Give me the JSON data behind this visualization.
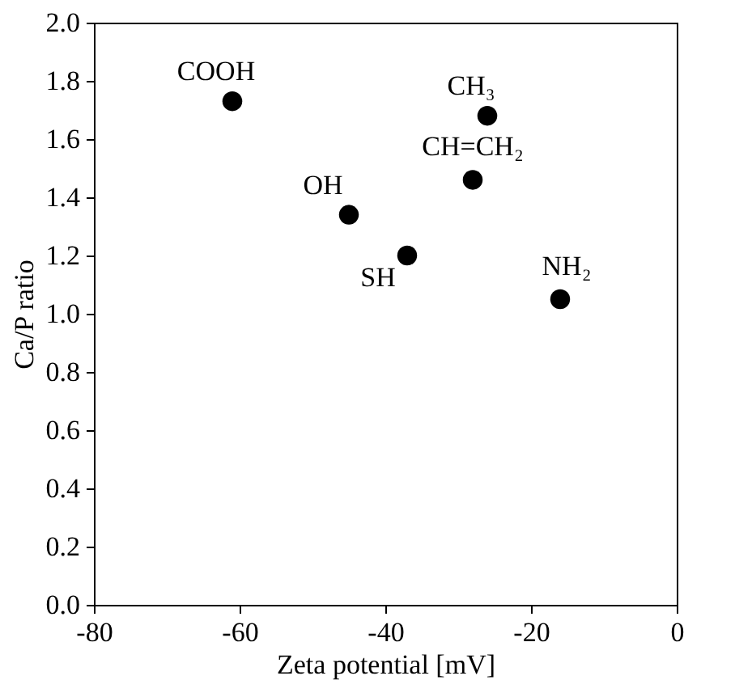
{
  "chart_data": {
    "type": "scatter",
    "xlabel": "Zeta potential [mV]",
    "ylabel": "Ca/P ratio",
    "x": [
      -61,
      -45,
      -37,
      -26,
      -28,
      -16
    ],
    "series": [
      {
        "color": "#000000",
        "values": [
          1.73,
          1.34,
          1.2,
          1.68,
          1.46,
          1.05
        ]
      }
    ],
    "marker": "circle",
    "xlim": [
      -80,
      0
    ],
    "xticks": [
      -80,
      -60,
      -40,
      -20,
      0
    ],
    "ylim": [
      0,
      2.0
    ],
    "yticks": [
      {
        "value": 0,
        "label": "0.0"
      },
      0.2,
      0.4,
      0.6,
      0.8,
      {
        "value": 1.0,
        "label": "1.0"
      },
      1.2,
      1.4,
      1.6,
      1.8,
      {
        "value": 2.0,
        "label": "2.0"
      }
    ],
    "grid": false,
    "annotations": [
      {
        "text": "COOH",
        "x": -61,
        "y": 1.73
      },
      {
        "text": "OH",
        "x": -45,
        "y": 1.34
      },
      {
        "text": "SH",
        "x": -37,
        "y": 1.2
      },
      {
        "text": "CH₃",
        "x": -26,
        "y": 1.68
      },
      {
        "text": "CH=CH₂",
        "x": -28,
        "y": 1.46
      },
      {
        "text": "NH₂",
        "x": -16,
        "y": 1.05
      }
    ]
  }
}
